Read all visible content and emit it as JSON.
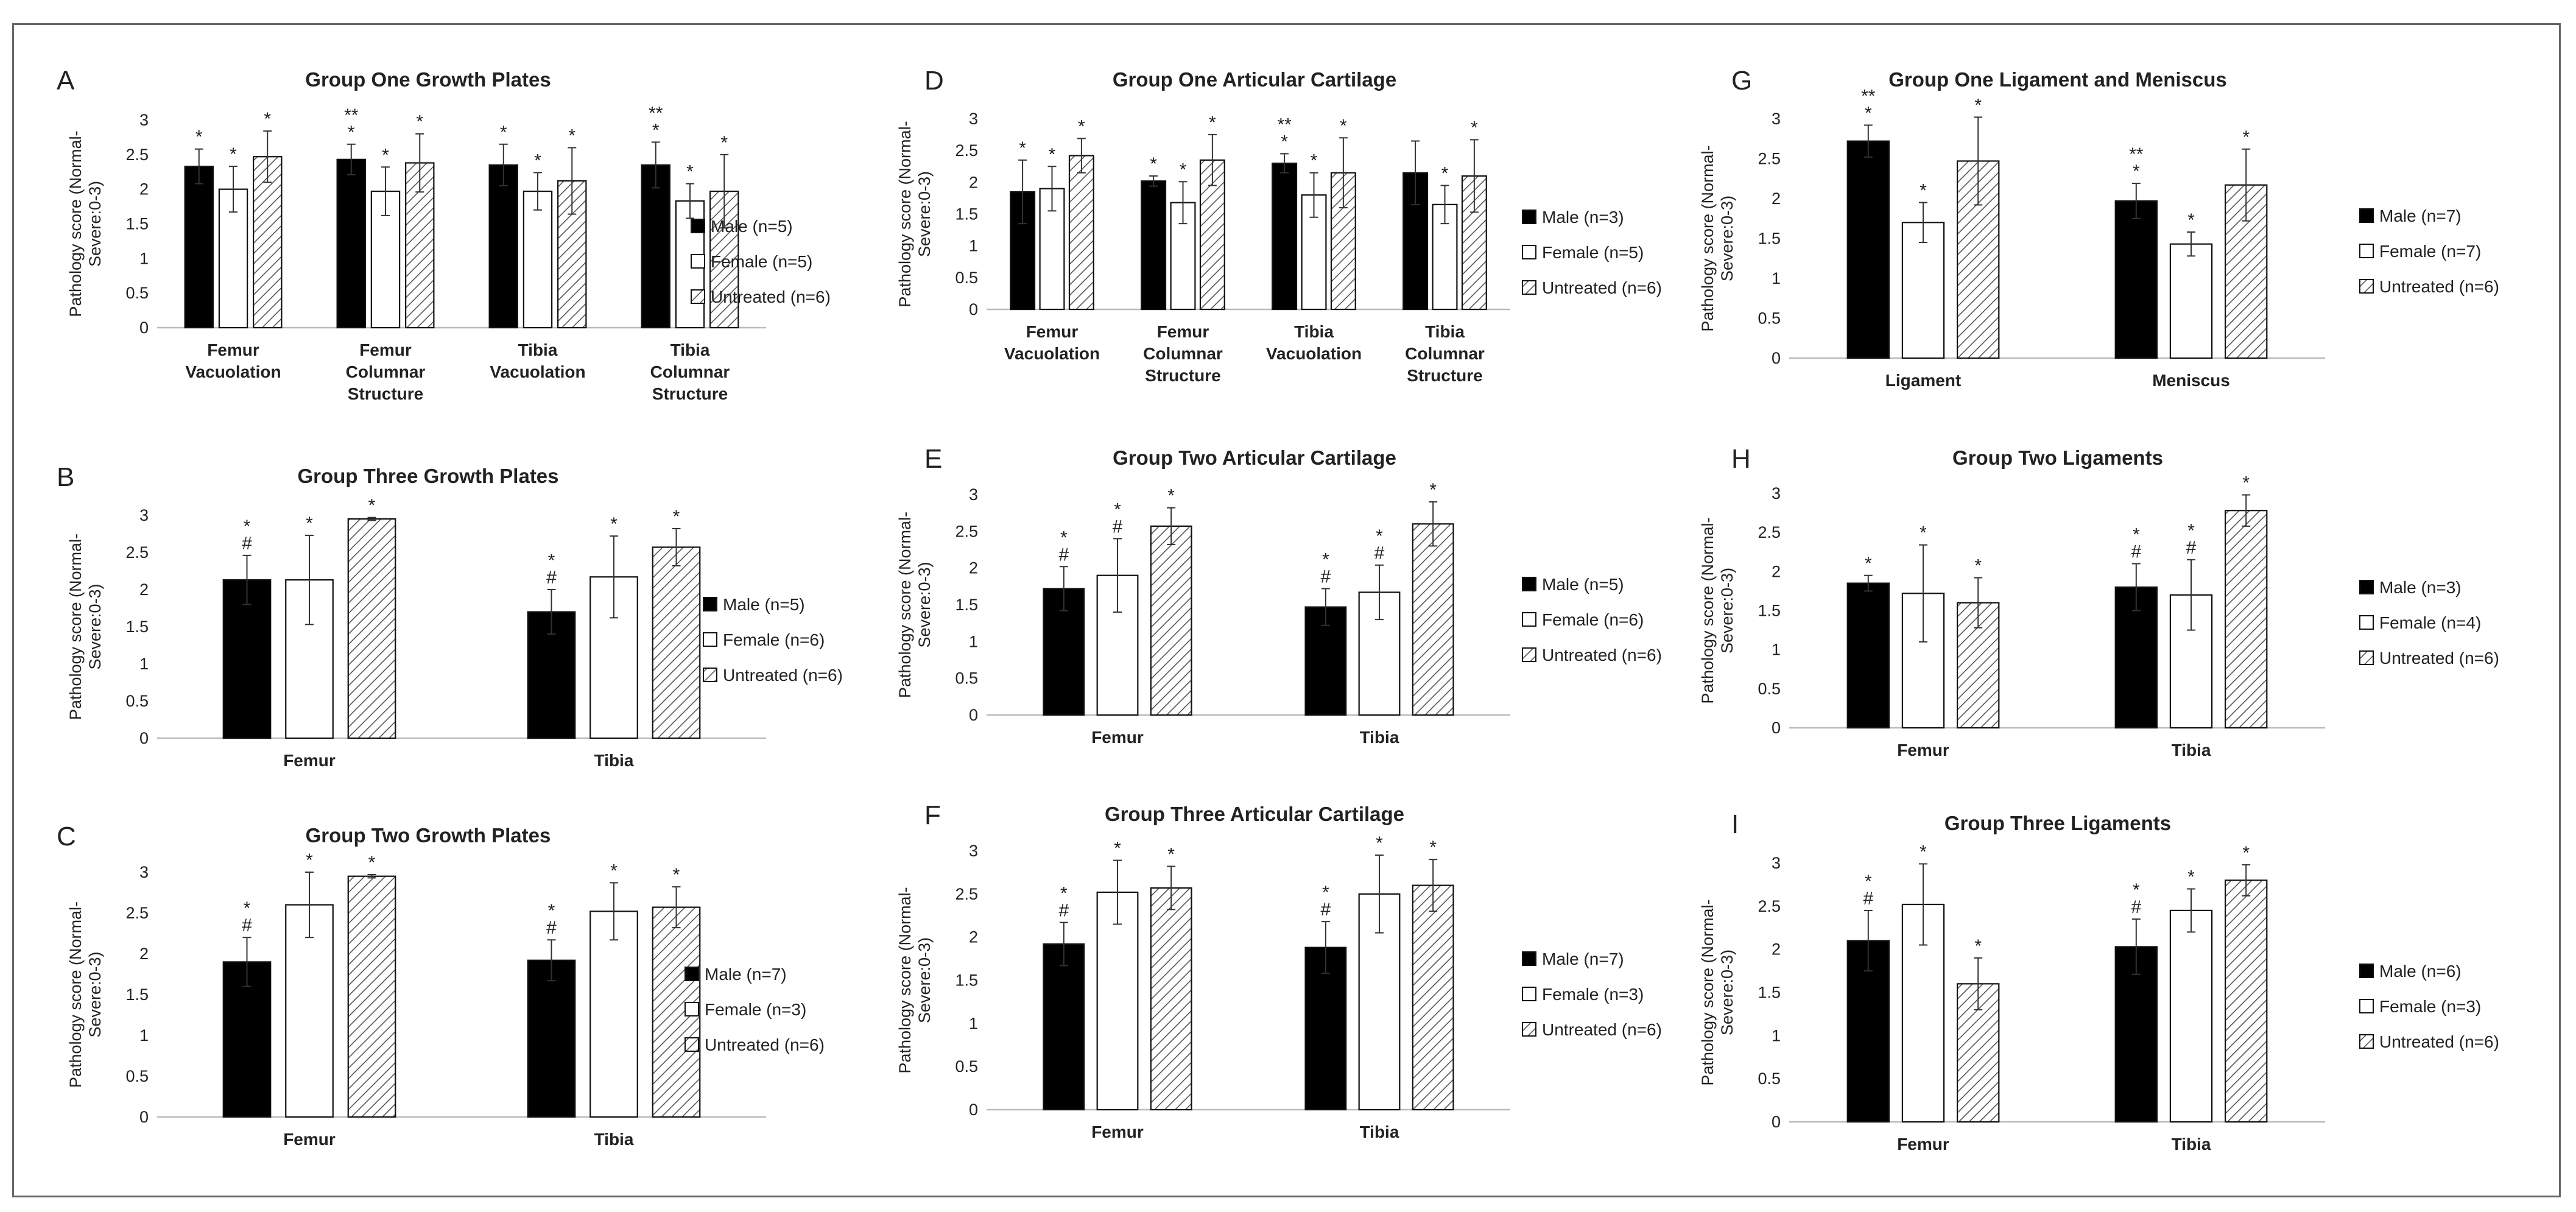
{
  "figure": {
    "y_axis_label": "Pathology score (Normal-Severe:0-3)",
    "series_colors": {
      "male": "#000000",
      "female": "#ffffff",
      "untreated": "#ffffff"
    }
  },
  "chart_data": [
    {
      "panel": "A",
      "type": "bar",
      "title": "Group One Growth Plates",
      "ylabel": "Pathology score (Normal-Severe:0-3)",
      "ylim": [
        0,
        3
      ],
      "ytick_step": 0.5,
      "categories": [
        [
          "Femur",
          "Vacuolation"
        ],
        [
          "Femur",
          "Columnar",
          "Structure"
        ],
        [
          "Tibia",
          "Vacuolation"
        ],
        [
          "Tibia",
          "Columnar",
          "Structure"
        ]
      ],
      "series": [
        {
          "name": "Male (n=5)",
          "fill": "solid",
          "values": [
            2.33,
            2.43,
            2.35,
            2.35
          ],
          "errors": [
            0.25,
            0.22,
            0.3,
            0.33
          ],
          "annotations": [
            [
              "*"
            ],
            [
              "**",
              "*"
            ],
            [
              "*"
            ],
            [
              "**",
              "*"
            ]
          ]
        },
        {
          "name": "Female (n=5)",
          "fill": "white",
          "values": [
            2.0,
            1.97,
            1.97,
            1.83
          ],
          "errors": [
            0.33,
            0.35,
            0.27,
            0.25
          ],
          "annotations": [
            [
              "*"
            ],
            [
              "*"
            ],
            [
              "*"
            ],
            [
              "*"
            ]
          ]
        },
        {
          "name": "Untreated (n=6)",
          "fill": "hatched",
          "values": [
            2.47,
            2.38,
            2.12,
            1.97
          ],
          "errors": [
            0.37,
            0.42,
            0.48,
            0.53
          ],
          "annotations": [
            [
              "*"
            ],
            [
              "*"
            ],
            [
              "*"
            ],
            [
              "*"
            ]
          ]
        }
      ]
    },
    {
      "panel": "B",
      "type": "bar",
      "title": "Group Three Growth Plates",
      "ylabel": "Pathology score (Normal-Severe:0-3)",
      "ylim": [
        0,
        3
      ],
      "ytick_step": 0.5,
      "categories": [
        [
          "Femur"
        ],
        [
          "Tibia"
        ]
      ],
      "series": [
        {
          "name": "Male (n=5)",
          "fill": "solid",
          "values": [
            2.13,
            1.7
          ],
          "errors": [
            0.33,
            0.3
          ],
          "annotations": [
            [
              "*",
              "#"
            ],
            [
              "*",
              "#"
            ]
          ]
        },
        {
          "name": "Female (n=6)",
          "fill": "white",
          "values": [
            2.13,
            2.17
          ],
          "errors": [
            0.6,
            0.55
          ],
          "annotations": [
            [
              "*"
            ],
            [
              "*"
            ]
          ]
        },
        {
          "name": "Untreated (n=6)",
          "fill": "hatched",
          "values": [
            2.95,
            2.57
          ],
          "errors": [
            0.02,
            0.25
          ],
          "annotations": [
            [
              "*"
            ],
            [
              "*"
            ]
          ]
        }
      ]
    },
    {
      "panel": "C",
      "type": "bar",
      "title": "Group Two Growth Plates",
      "ylabel": "Pathology score (Normal-Severe:0-3)",
      "ylim": [
        0,
        3
      ],
      "ytick_step": 0.5,
      "categories": [
        [
          "Femur"
        ],
        [
          "Tibia"
        ]
      ],
      "series": [
        {
          "name": "Male (n=7)",
          "fill": "solid",
          "values": [
            1.9,
            1.92
          ],
          "errors": [
            0.3,
            0.25
          ],
          "annotations": [
            [
              "*",
              "#"
            ],
            [
              "*",
              "#"
            ]
          ]
        },
        {
          "name": "Female (n=3)",
          "fill": "white",
          "values": [
            2.6,
            2.52
          ],
          "errors": [
            0.4,
            0.35
          ],
          "annotations": [
            [
              "*"
            ],
            [
              "*"
            ]
          ]
        },
        {
          "name": "Untreated (n=6)",
          "fill": "hatched",
          "values": [
            2.95,
            2.57
          ],
          "errors": [
            0.02,
            0.25
          ],
          "annotations": [
            [
              "*"
            ],
            [
              "*"
            ]
          ]
        }
      ]
    },
    {
      "panel": "D",
      "type": "bar",
      "title": "Group One Articular Cartilage",
      "ylabel": "Pathology score (Normal-Severe:0-3)",
      "ylim": [
        0,
        3
      ],
      "ytick_step": 0.5,
      "categories": [
        [
          "Femur",
          "Vacuolation"
        ],
        [
          "Femur",
          "Columnar",
          "Structure"
        ],
        [
          "Tibia",
          "Vacuolation"
        ],
        [
          "Tibia",
          "Columnar",
          "Structure"
        ]
      ],
      "series": [
        {
          "name": "Male (n=3)",
          "fill": "solid",
          "values": [
            1.85,
            2.02,
            2.3,
            2.15
          ],
          "errors": [
            0.5,
            0.08,
            0.15,
            0.5
          ],
          "annotations": [
            [
              "*"
            ],
            [
              "*"
            ],
            [
              "**",
              "*"
            ],
            []
          ]
        },
        {
          "name": "Female (n=5)",
          "fill": "white",
          "values": [
            1.9,
            1.68,
            1.8,
            1.65
          ],
          "errors": [
            0.35,
            0.33,
            0.35,
            0.3
          ],
          "annotations": [
            [
              "*"
            ],
            [
              "*"
            ],
            [
              "*"
            ],
            [
              "*"
            ]
          ]
        },
        {
          "name": "Untreated (n=6)",
          "fill": "hatched",
          "values": [
            2.42,
            2.35,
            2.15,
            2.1
          ],
          "errors": [
            0.27,
            0.4,
            0.55,
            0.57
          ],
          "annotations": [
            [
              "*"
            ],
            [
              "*"
            ],
            [
              "*"
            ],
            [
              "*"
            ]
          ]
        }
      ]
    },
    {
      "panel": "E",
      "type": "bar",
      "title": "Group Two Articular Cartilage",
      "ylabel": "Pathology score (Normal-Severe:0-3)",
      "ylim": [
        0,
        3
      ],
      "ytick_step": 0.5,
      "categories": [
        [
          "Femur"
        ],
        [
          "Tibia"
        ]
      ],
      "series": [
        {
          "name": "Male (n=5)",
          "fill": "solid",
          "values": [
            1.72,
            1.47
          ],
          "errors": [
            0.3,
            0.25
          ],
          "annotations": [
            [
              "*",
              "#"
            ],
            [
              "*",
              "#"
            ]
          ]
        },
        {
          "name": "Female (n=6)",
          "fill": "white",
          "values": [
            1.9,
            1.67
          ],
          "errors": [
            0.5,
            0.37
          ],
          "annotations": [
            [
              "*",
              "#"
            ],
            [
              "*",
              "#"
            ]
          ]
        },
        {
          "name": "Untreated (n=6)",
          "fill": "hatched",
          "values": [
            2.57,
            2.6
          ],
          "errors": [
            0.25,
            0.3
          ],
          "annotations": [
            [
              "*"
            ],
            [
              "*"
            ]
          ]
        }
      ]
    },
    {
      "panel": "F",
      "type": "bar",
      "title": "Group Three Articular Cartilage",
      "ylabel": "Pathology score (Normal-Severe:0-3)",
      "ylim": [
        0,
        3
      ],
      "ytick_step": 0.5,
      "categories": [
        [
          "Femur"
        ],
        [
          "Tibia"
        ]
      ],
      "series": [
        {
          "name": "Male (n=7)",
          "fill": "solid",
          "values": [
            1.92,
            1.88
          ],
          "errors": [
            0.25,
            0.3
          ],
          "annotations": [
            [
              "*",
              "#"
            ],
            [
              "*",
              "#"
            ]
          ]
        },
        {
          "name": "Female (n=3)",
          "fill": "white",
          "values": [
            2.52,
            2.5
          ],
          "errors": [
            0.37,
            0.45
          ],
          "annotations": [
            [
              "*"
            ],
            [
              "*"
            ]
          ]
        },
        {
          "name": "Untreated (n=6)",
          "fill": "hatched",
          "values": [
            2.57,
            2.6
          ],
          "errors": [
            0.25,
            0.3
          ],
          "annotations": [
            [
              "*"
            ],
            [
              "*"
            ]
          ]
        }
      ]
    },
    {
      "panel": "G",
      "type": "bar",
      "title": "Group One Ligament and Meniscus",
      "ylabel": "Pathology score (Normal-Severe:0-3)",
      "ylim": [
        0,
        3
      ],
      "ytick_step": 0.5,
      "categories": [
        [
          "Ligament"
        ],
        [
          "Meniscus"
        ]
      ],
      "series": [
        {
          "name": "Male (n=7)",
          "fill": "solid",
          "values": [
            2.72,
            1.97
          ],
          "errors": [
            0.2,
            0.22
          ],
          "annotations": [
            [
              "**",
              "*"
            ],
            [
              "**",
              "*"
            ]
          ]
        },
        {
          "name": "Female (n=7)",
          "fill": "white",
          "values": [
            1.7,
            1.43
          ],
          "errors": [
            0.25,
            0.15
          ],
          "annotations": [
            [
              "*"
            ],
            [
              "*"
            ]
          ]
        },
        {
          "name": "Untreated (n=6)",
          "fill": "hatched",
          "values": [
            2.47,
            2.17
          ],
          "errors": [
            0.55,
            0.45
          ],
          "annotations": [
            [
              "*"
            ],
            [
              "*"
            ]
          ]
        }
      ]
    },
    {
      "panel": "H",
      "type": "bar",
      "title": "Group Two Ligaments",
      "ylabel": "Pathology score (Normal-Severe:0-3)",
      "ylim": [
        0,
        3
      ],
      "ytick_step": 0.5,
      "categories": [
        [
          "Femur"
        ],
        [
          "Tibia"
        ]
      ],
      "series": [
        {
          "name": "Male (n=3)",
          "fill": "solid",
          "values": [
            1.85,
            1.8
          ],
          "errors": [
            0.1,
            0.3
          ],
          "annotations": [
            [
              "*"
            ],
            [
              "*",
              "#"
            ]
          ]
        },
        {
          "name": "Female (n=4)",
          "fill": "white",
          "values": [
            1.72,
            1.7
          ],
          "errors": [
            0.62,
            0.45
          ],
          "annotations": [
            [
              "*"
            ],
            [
              "*",
              "#"
            ]
          ]
        },
        {
          "name": "Untreated (n=6)",
          "fill": "hatched",
          "values": [
            1.6,
            2.78
          ],
          "errors": [
            0.32,
            0.2
          ],
          "annotations": [
            [
              "*"
            ],
            [
              "*"
            ]
          ]
        }
      ]
    },
    {
      "panel": "I",
      "type": "bar",
      "title": "Group Three Ligaments",
      "ylabel": "Pathology score (Normal-Severe:0-3)",
      "ylim": [
        0,
        3
      ],
      "ytick_step": 0.5,
      "categories": [
        [
          "Femur"
        ],
        [
          "Tibia"
        ]
      ],
      "series": [
        {
          "name": "Male (n=6)",
          "fill": "solid",
          "values": [
            2.1,
            2.03
          ],
          "errors": [
            0.35,
            0.32
          ],
          "annotations": [
            [
              "*",
              "#"
            ],
            [
              "*",
              "#"
            ]
          ]
        },
        {
          "name": "Female (n=3)",
          "fill": "white",
          "values": [
            2.52,
            2.45
          ],
          "errors": [
            0.47,
            0.25
          ],
          "annotations": [
            [
              "*"
            ],
            [
              "*"
            ]
          ]
        },
        {
          "name": "Untreated (n=6)",
          "fill": "hatched",
          "values": [
            1.6,
            2.8
          ],
          "errors": [
            0.3,
            0.18
          ],
          "annotations": [
            [
              "*"
            ],
            [
              "*"
            ]
          ]
        }
      ]
    }
  ]
}
